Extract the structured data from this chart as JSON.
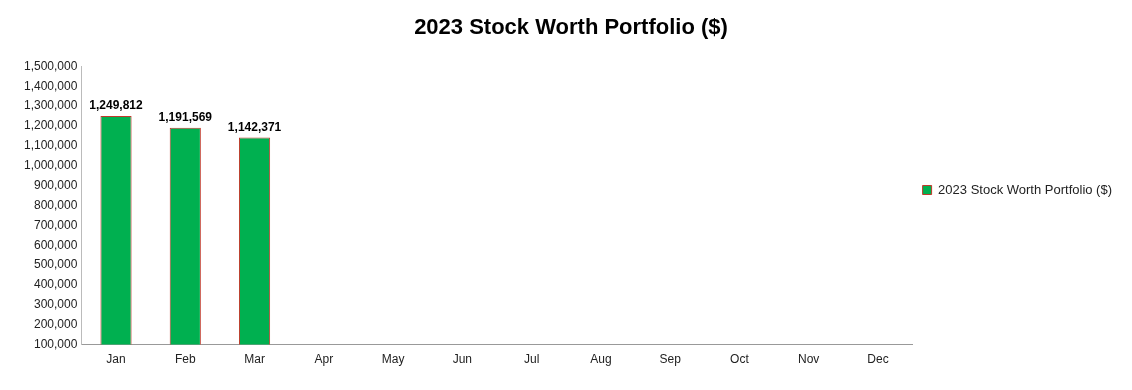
{
  "chart_data": {
    "type": "bar",
    "title": "2023 Stock Worth Portfolio ($)",
    "categories": [
      "Jan",
      "Feb",
      "Mar",
      "Apr",
      "May",
      "Jun",
      "Jul",
      "Aug",
      "Sep",
      "Oct",
      "Nov",
      "Dec"
    ],
    "series": [
      {
        "name": "2023 Stock Worth Portfolio ($)",
        "color": "#00b050",
        "values": [
          1249812,
          1191569,
          1142371,
          null,
          null,
          null,
          null,
          null,
          null,
          null,
          null,
          null
        ],
        "value_labels": [
          "1,249,812",
          "1,191,569",
          "1,142,371",
          null,
          null,
          null,
          null,
          null,
          null,
          null,
          null,
          null
        ]
      }
    ],
    "ylim": [
      100000,
      1500000
    ],
    "yticks": [
      {
        "value": 100000,
        "label": "100,000"
      },
      {
        "value": 200000,
        "label": "200,000"
      },
      {
        "value": 300000,
        "label": "300,000"
      },
      {
        "value": 400000,
        "label": "400,000"
      },
      {
        "value": 500000,
        "label": "500,000"
      },
      {
        "value": 600000,
        "label": "600,000"
      },
      {
        "value": 700000,
        "label": "700,000"
      },
      {
        "value": 800000,
        "label": "800,000"
      },
      {
        "value": 900000,
        "label": "900,000"
      },
      {
        "value": 1000000,
        "label": "1,000,000"
      },
      {
        "value": 1100000,
        "label": "1,100,000"
      },
      {
        "value": 1200000,
        "label": "1,200,000"
      },
      {
        "value": 1300000,
        "label": "1,300,000"
      },
      {
        "value": 1400000,
        "label": "1,400,000"
      },
      {
        "value": 1500000,
        "label": "1,500,000"
      }
    ],
    "grid": false,
    "legend": "right"
  }
}
